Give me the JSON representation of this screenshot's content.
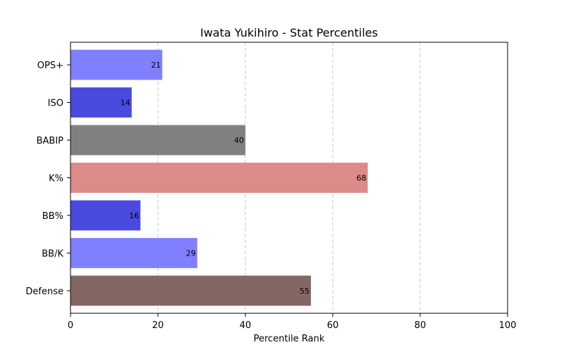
{
  "chart_data": {
    "type": "bar",
    "orientation": "horizontal",
    "title": "Iwata Yukihiro - Stat Percentiles",
    "xlabel": "Percentile Rank",
    "ylabel": "",
    "xlim": [
      0,
      100
    ],
    "xticks": [
      "0",
      "20",
      "40",
      "60",
      "80",
      "100"
    ],
    "grid": "x-dashed",
    "categories": [
      "OPS+",
      "ISO",
      "BABIP",
      "K%",
      "BB%",
      "BB/K",
      "Defense"
    ],
    "values": [
      21,
      14,
      40,
      68,
      16,
      29,
      55
    ],
    "value_labels": [
      "21",
      "14",
      "40",
      "68",
      "16",
      "29",
      "55"
    ],
    "colors": [
      "#8080ff",
      "#4a4adf",
      "#808080",
      "#dd8a8a",
      "#4a4adf",
      "#8080ff",
      "#836765"
    ]
  }
}
